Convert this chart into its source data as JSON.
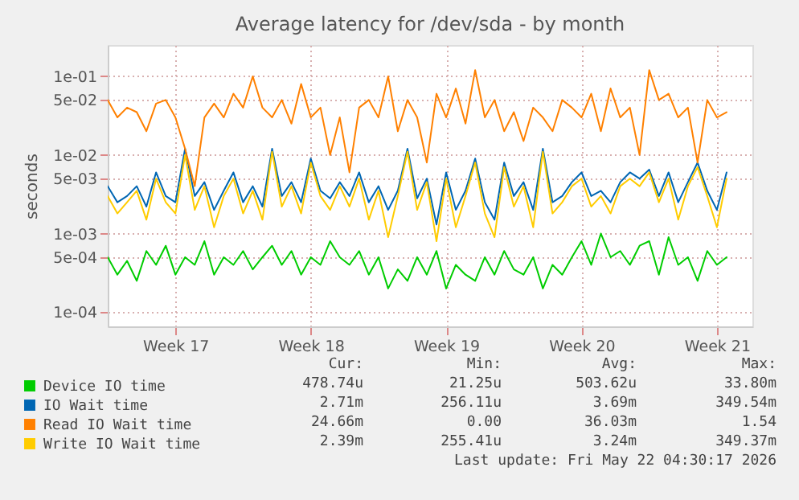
{
  "chart_data": {
    "type": "line",
    "title": "Average latency for /dev/sda - by month",
    "ylabel": "seconds",
    "log": "y",
    "grid": true,
    "legend": "bottom",
    "marker": "none",
    "line_style": "solid",
    "xlim": [
      "2026-04-20T00:00",
      "2026-05-23T08:00"
    ],
    "xticks": [
      {
        "value": "2026-04-23T12:00",
        "label": "Week 17"
      },
      {
        "value": "2026-04-30T12:00",
        "label": "Week 18"
      },
      {
        "value": "2026-05-07T12:00",
        "label": "Week 19"
      },
      {
        "value": "2026-05-14T12:00",
        "label": "Week 20"
      },
      {
        "value": "2026-05-21T12:00",
        "label": "Week 21"
      }
    ],
    "ylim": [
      6.6e-05,
      0.25
    ],
    "yticks": [
      {
        "value": 0.0001,
        "label": "1e-04"
      },
      {
        "value": 0.0005,
        "label": "5e-04"
      },
      {
        "value": 0.001,
        "label": "1e-03"
      },
      {
        "value": 0.005,
        "label": "5e-03"
      },
      {
        "value": 0.01,
        "label": "1e-02"
      },
      {
        "value": 0.05,
        "label": "5e-02"
      },
      {
        "value": 0.1,
        "label": "1e-01"
      }
    ],
    "x": [
      "2026-04-20T00:00",
      "2026-04-20T12:00",
      "2026-04-21T00:00",
      "2026-04-21T12:00",
      "2026-04-22T00:00",
      "2026-04-22T12:00",
      "2026-04-23T00:00",
      "2026-04-23T12:00",
      "2026-04-24T00:00",
      "2026-04-24T12:00",
      "2026-04-25T00:00",
      "2026-04-25T12:00",
      "2026-04-26T00:00",
      "2026-04-26T12:00",
      "2026-04-27T00:00",
      "2026-04-27T12:00",
      "2026-04-28T00:00",
      "2026-04-28T12:00",
      "2026-04-29T00:00",
      "2026-04-29T12:00",
      "2026-04-30T00:00",
      "2026-04-30T12:00",
      "2026-05-01T00:00",
      "2026-05-01T12:00",
      "2026-05-02T00:00",
      "2026-05-02T12:00",
      "2026-05-03T00:00",
      "2026-05-03T12:00",
      "2026-05-04T00:00",
      "2026-05-04T12:00",
      "2026-05-05T00:00",
      "2026-05-05T12:00",
      "2026-05-06T00:00",
      "2026-05-06T12:00",
      "2026-05-07T00:00",
      "2026-05-07T12:00",
      "2026-05-08T00:00",
      "2026-05-08T12:00",
      "2026-05-09T00:00",
      "2026-05-09T12:00",
      "2026-05-10T00:00",
      "2026-05-10T12:00",
      "2026-05-11T00:00",
      "2026-05-11T12:00",
      "2026-05-12T00:00",
      "2026-05-12T12:00",
      "2026-05-13T00:00",
      "2026-05-13T12:00",
      "2026-05-14T00:00",
      "2026-05-14T12:00",
      "2026-05-15T00:00",
      "2026-05-15T12:00",
      "2026-05-16T00:00",
      "2026-05-16T12:00",
      "2026-05-17T00:00",
      "2026-05-17T12:00",
      "2026-05-18T00:00",
      "2026-05-18T12:00",
      "2026-05-19T00:00",
      "2026-05-19T12:00",
      "2026-05-20T00:00",
      "2026-05-20T12:00",
      "2026-05-21T00:00",
      "2026-05-21T12:00",
      "2026-05-22T00:00"
    ],
    "series": [
      {
        "name": "Device IO time",
        "color": "#00cc00",
        "values": [
          0.0005,
          0.0003,
          0.00045,
          0.00025,
          0.0006,
          0.0004,
          0.0007,
          0.0003,
          0.0005,
          0.0004,
          0.0008,
          0.0003,
          0.0005,
          0.0004,
          0.0006,
          0.00035,
          0.0005,
          0.0007,
          0.0004,
          0.0006,
          0.0003,
          0.0005,
          0.0004,
          0.0008,
          0.0005,
          0.0004,
          0.0006,
          0.0003,
          0.0005,
          0.0002,
          0.00035,
          0.00025,
          0.0005,
          0.0003,
          0.0006,
          0.0002,
          0.0004,
          0.0003,
          0.00025,
          0.0005,
          0.0003,
          0.0006,
          0.00035,
          0.0003,
          0.0005,
          0.0002,
          0.0004,
          0.0003,
          0.0005,
          0.0008,
          0.0004,
          0.001,
          0.0005,
          0.0006,
          0.0004,
          0.0007,
          0.0008,
          0.0003,
          0.0009,
          0.0004,
          0.0005,
          0.00025,
          0.0006,
          0.0004,
          0.0005
        ]
      },
      {
        "name": "IO Wait time",
        "color": "#0066b3",
        "values": [
          0.004,
          0.0025,
          0.003,
          0.004,
          0.0022,
          0.006,
          0.003,
          0.0025,
          0.012,
          0.003,
          0.0045,
          0.002,
          0.0035,
          0.006,
          0.0025,
          0.004,
          0.0022,
          0.012,
          0.003,
          0.0045,
          0.0025,
          0.009,
          0.0035,
          0.0028,
          0.0045,
          0.003,
          0.006,
          0.0025,
          0.004,
          0.002,
          0.0035,
          0.012,
          0.0028,
          0.005,
          0.0013,
          0.006,
          0.002,
          0.0035,
          0.009,
          0.0025,
          0.0015,
          0.008,
          0.003,
          0.0045,
          0.002,
          0.012,
          0.0025,
          0.003,
          0.0045,
          0.006,
          0.003,
          0.0035,
          0.0025,
          0.0045,
          0.006,
          0.005,
          0.0065,
          0.003,
          0.006,
          0.0025,
          0.0045,
          0.008,
          0.0035,
          0.002,
          0.006
        ]
      },
      {
        "name": "Read IO Wait time",
        "color": "#ff8000",
        "values": [
          0.05,
          0.03,
          0.04,
          0.035,
          0.02,
          0.045,
          0.05,
          0.03,
          0.012,
          0.004,
          0.03,
          0.045,
          0.03,
          0.06,
          0.04,
          0.1,
          0.04,
          0.03,
          0.05,
          0.025,
          0.08,
          0.03,
          0.04,
          0.01,
          0.03,
          0.006,
          0.04,
          0.05,
          0.03,
          0.1,
          0.02,
          0.05,
          0.03,
          0.008,
          0.06,
          0.03,
          0.07,
          0.025,
          0.12,
          0.03,
          0.05,
          0.02,
          0.035,
          0.015,
          0.04,
          0.03,
          0.02,
          0.05,
          0.04,
          0.03,
          0.06,
          0.02,
          0.07,
          0.03,
          0.04,
          0.01,
          0.12,
          0.05,
          0.06,
          0.03,
          0.04,
          0.008,
          0.05,
          0.03,
          0.035
        ]
      },
      {
        "name": "Write IO Wait time",
        "color": "#ffcc00",
        "values": [
          0.003,
          0.0018,
          0.0025,
          0.0035,
          0.0015,
          0.005,
          0.0025,
          0.0018,
          0.01,
          0.002,
          0.004,
          0.0012,
          0.003,
          0.005,
          0.0018,
          0.0035,
          0.0015,
          0.011,
          0.0022,
          0.004,
          0.0018,
          0.008,
          0.003,
          0.002,
          0.004,
          0.0022,
          0.005,
          0.0015,
          0.0035,
          0.0009,
          0.003,
          0.011,
          0.002,
          0.0045,
          0.0008,
          0.005,
          0.0012,
          0.003,
          0.008,
          0.0018,
          0.0009,
          0.007,
          0.0022,
          0.004,
          0.0012,
          0.011,
          0.0018,
          0.0025,
          0.004,
          0.005,
          0.0022,
          0.003,
          0.0018,
          0.004,
          0.005,
          0.004,
          0.006,
          0.0025,
          0.005,
          0.0015,
          0.004,
          0.007,
          0.003,
          0.0012,
          0.005
        ]
      }
    ],
    "annotations": [
      "Cur:",
      "Min:",
      "Avg:",
      "Max:",
      "478.74u",
      "21.25u",
      "503.62u",
      "33.80m",
      "2.71m",
      "256.11u",
      "3.69m",
      "349.54m",
      "24.66m",
      "0.00",
      "36.03m",
      "1.54",
      "2.39m",
      "255.41u",
      "3.24m",
      "349.37m",
      "Last update: Fri May 22 04:30:17 2026"
    ]
  }
}
